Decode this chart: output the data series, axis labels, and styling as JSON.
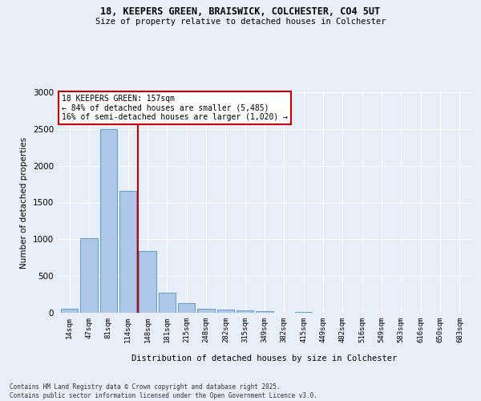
{
  "title_line1": "18, KEEPERS GREEN, BRAISWICK, COLCHESTER, CO4 5UT",
  "title_line2": "Size of property relative to detached houses in Colchester",
  "xlabel": "Distribution of detached houses by size in Colchester",
  "ylabel": "Number of detached properties",
  "footer_line1": "Contains HM Land Registry data © Crown copyright and database right 2025.",
  "footer_line2": "Contains public sector information licensed under the Open Government Licence v3.0.",
  "categories": [
    "14sqm",
    "47sqm",
    "81sqm",
    "114sqm",
    "148sqm",
    "181sqm",
    "215sqm",
    "248sqm",
    "282sqm",
    "315sqm",
    "349sqm",
    "382sqm",
    "415sqm",
    "449sqm",
    "482sqm",
    "516sqm",
    "549sqm",
    "583sqm",
    "616sqm",
    "650sqm",
    "683sqm"
  ],
  "values": [
    55,
    1010,
    2500,
    1660,
    840,
    270,
    130,
    55,
    48,
    35,
    20,
    0,
    15,
    0,
    0,
    0,
    0,
    0,
    0,
    0,
    0
  ],
  "bar_color": "#aec6e8",
  "bar_edge_color": "#5a9fd4",
  "property_label": "18 KEEPERS GREEN: 157sqm",
  "pct_smaller": 84,
  "n_smaller": 5485,
  "pct_larger": 16,
  "n_larger": 1020,
  "vline_x": 3.5,
  "annotation_box_color": "#cc0000",
  "background_color": "#e8eef8",
  "grid_color": "#ffffff",
  "ylim": [
    0,
    3000
  ],
  "yticks": [
    0,
    500,
    1000,
    1500,
    2000,
    2500,
    3000
  ]
}
